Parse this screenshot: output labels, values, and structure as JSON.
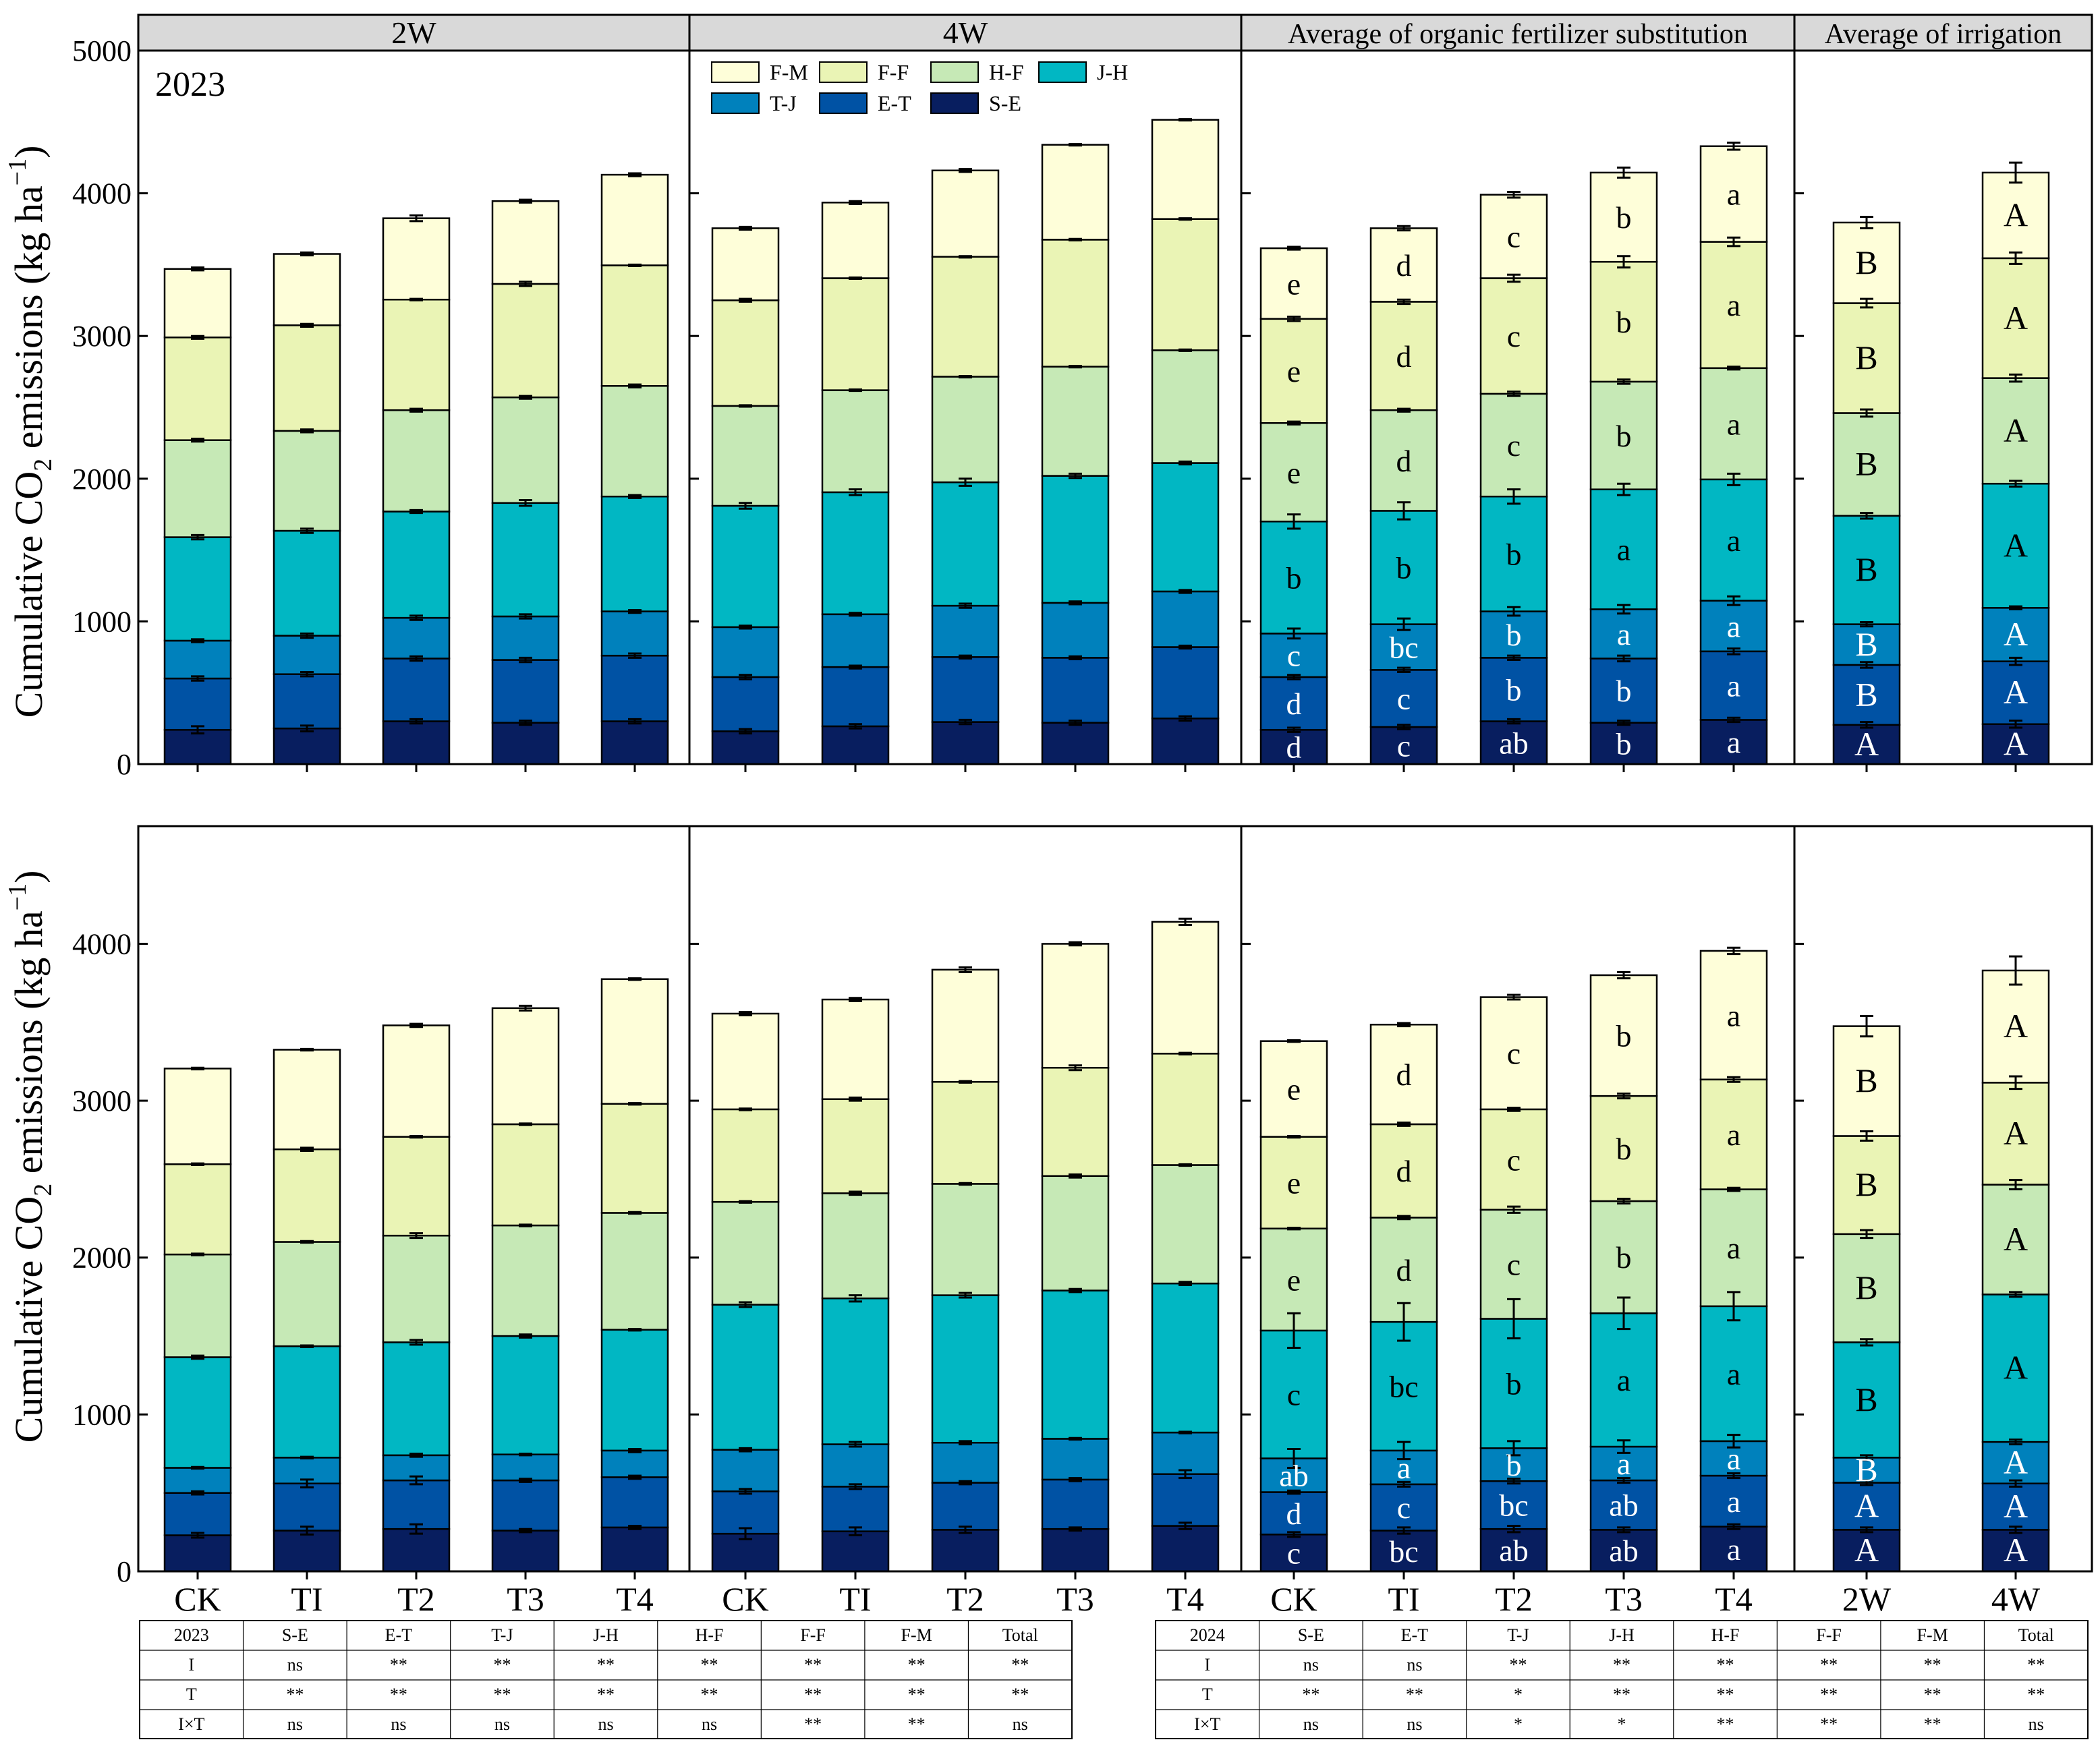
{
  "figure": {
    "ylabel_main": "Cumulative CO",
    "ylabel_sub": "2",
    "ylabel_rest": " emissions (kg ha",
    "ylabel_sup": "−1",
    "ylabel_end": ")",
    "panel_headers": [
      "2W",
      "4W",
      "Average of organic fertilizer substitution",
      "Average of irrigation"
    ],
    "year_label_top": "2023",
    "x_labels": [
      "CK",
      "TI",
      "T2",
      "T3",
      "T4",
      "CK",
      "TI",
      "T2",
      "T3",
      "T4",
      "CK",
      "TI",
      "T2",
      "T3",
      "T4",
      "2W",
      "4W"
    ]
  },
  "legend": [
    {
      "key": "F-M",
      "color": "#fefed9"
    },
    {
      "key": "F-F",
      "color": "#eaf4b5"
    },
    {
      "key": "H-F",
      "color": "#c6e9b6"
    },
    {
      "key": "J-H",
      "color": "#01b7c3"
    },
    {
      "key": "T-J",
      "color": "#0081bc"
    },
    {
      "key": "E-T",
      "color": "#0052a4"
    },
    {
      "key": "S-E",
      "color": "#081e5f"
    }
  ],
  "chart_data": [
    {
      "type": "bar",
      "stacked": true,
      "title": "2023",
      "ylabel": "Cumulative CO2 emissions (kg ha-1)",
      "ylim": [
        0,
        5000
      ],
      "yticks": [
        0,
        1000,
        2000,
        3000,
        4000,
        5000
      ],
      "categories": [
        "2W CK",
        "2W TI",
        "2W T2",
        "2W T3",
        "2W T4",
        "4W CK",
        "4W TI",
        "4W T2",
        "4W T3",
        "4W T4",
        "Avg CK",
        "Avg TI",
        "Avg T2",
        "Avg T3",
        "Avg T4",
        "2W",
        "4W"
      ],
      "cumulative": {
        "S-E": [
          240,
          250,
          300,
          290,
          300,
          230,
          265,
          295,
          290,
          320,
          240,
          260,
          300,
          290,
          310,
          275,
          280
        ],
        "E-T": [
          600,
          630,
          740,
          730,
          760,
          610,
          680,
          750,
          745,
          820,
          610,
          660,
          745,
          740,
          790,
          695,
          720
        ],
        "T-J": [
          865,
          900,
          1025,
          1035,
          1070,
          960,
          1050,
          1110,
          1130,
          1210,
          915,
          980,
          1070,
          1085,
          1145,
          980,
          1095
        ],
        "J-H": [
          1590,
          1635,
          1770,
          1830,
          1875,
          1810,
          1905,
          1975,
          2020,
          2110,
          1700,
          1775,
          1875,
          1925,
          1995,
          1740,
          1965
        ],
        "H-F": [
          2270,
          2335,
          2480,
          2570,
          2650,
          2510,
          2620,
          2715,
          2785,
          2900,
          2390,
          2480,
          2595,
          2680,
          2775,
          2460,
          2705
        ],
        "F-F": [
          2990,
          3075,
          3255,
          3365,
          3495,
          3250,
          3405,
          3555,
          3675,
          3820,
          3120,
          3240,
          3405,
          3520,
          3660,
          3230,
          3545
        ],
        "F-M": [
          3470,
          3575,
          3825,
          3945,
          4130,
          3755,
          3935,
          4160,
          4340,
          4515,
          3615,
          3755,
          3990,
          4145,
          4330,
          3795,
          4145
        ]
      },
      "error": {
        "S-E": [
          25,
          20,
          15,
          15,
          15,
          15,
          15,
          15,
          15,
          15,
          15,
          15,
          15,
          15,
          15,
          20,
          25
        ],
        "E-T": [
          15,
          15,
          15,
          15,
          15,
          15,
          10,
          10,
          10,
          10,
          15,
          15,
          15,
          20,
          20,
          20,
          25
        ],
        "T-J": [
          10,
          15,
          15,
          15,
          10,
          10,
          10,
          15,
          10,
          10,
          35,
          40,
          30,
          30,
          30,
          15,
          10
        ],
        "J-H": [
          15,
          15,
          10,
          20,
          10,
          20,
          20,
          25,
          15,
          10,
          50,
          60,
          50,
          40,
          40,
          20,
          20
        ],
        "H-F": [
          10,
          10,
          10,
          10,
          10,
          5,
          5,
          5,
          5,
          5,
          10,
          10,
          15,
          15,
          10,
          25,
          25
        ],
        "F-F": [
          10,
          10,
          5,
          15,
          5,
          10,
          5,
          5,
          5,
          5,
          15,
          15,
          25,
          40,
          30,
          30,
          40
        ],
        "F-M": [
          10,
          10,
          20,
          10,
          10,
          10,
          10,
          10,
          5,
          5,
          10,
          15,
          20,
          35,
          25,
          40,
          70
        ]
      },
      "significance": {
        "10": [
          "d",
          "d",
          "c",
          "b",
          "e",
          "e",
          "e"
        ],
        "11": [
          "c",
          "c",
          "bc",
          "b",
          "d",
          "d",
          "d"
        ],
        "12": [
          "ab",
          "b",
          "b",
          "b",
          "c",
          "c",
          "c"
        ],
        "13": [
          "b",
          "b",
          "a",
          "a",
          "b",
          "b",
          "b"
        ],
        "14": [
          "a",
          "a",
          "a",
          "a",
          "a",
          "a",
          "a"
        ],
        "15": [
          "A",
          "B",
          "B",
          "B",
          "B",
          "B",
          "B"
        ],
        "16": [
          "A",
          "A",
          "A",
          "A",
          "A",
          "A",
          "A"
        ]
      }
    },
    {
      "type": "bar",
      "stacked": true,
      "title": "2024",
      "ylabel": "Cumulative CO2 emissions (kg ha-1)",
      "ylim": [
        0,
        4750
      ],
      "yticks": [
        0,
        1000,
        2000,
        3000,
        4000
      ],
      "categories": [
        "2W CK",
        "2W TI",
        "2W T2",
        "2W T3",
        "2W T4",
        "4W CK",
        "4W TI",
        "4W T2",
        "4W T3",
        "4W T4",
        "Avg CK",
        "Avg TI",
        "Avg T2",
        "Avg T3",
        "Avg T4",
        "2W",
        "4W"
      ],
      "cumulative": {
        "S-E": [
          230,
          260,
          270,
          260,
          280,
          240,
          255,
          265,
          270,
          290,
          235,
          260,
          270,
          265,
          285,
          265,
          265
        ],
        "E-T": [
          500,
          560,
          580,
          580,
          600,
          510,
          540,
          565,
          585,
          620,
          505,
          555,
          575,
          580,
          610,
          565,
          560
        ],
        "T-J": [
          660,
          725,
          740,
          745,
          770,
          775,
          810,
          820,
          845,
          885,
          720,
          770,
          785,
          795,
          830,
          725,
          825
        ],
        "J-H": [
          1365,
          1435,
          1460,
          1500,
          1540,
          1700,
          1740,
          1760,
          1790,
          1835,
          1535,
          1590,
          1610,
          1645,
          1690,
          1460,
          1765
        ],
        "H-F": [
          2020,
          2100,
          2140,
          2205,
          2285,
          2355,
          2410,
          2470,
          2520,
          2590,
          2185,
          2255,
          2305,
          2360,
          2435,
          2150,
          2465
        ],
        "F-F": [
          2595,
          2690,
          2770,
          2850,
          2980,
          2945,
          3010,
          3120,
          3210,
          3300,
          2770,
          2850,
          2945,
          3030,
          3135,
          2775,
          3115
        ],
        "F-M": [
          3205,
          3325,
          3480,
          3590,
          3775,
          3555,
          3645,
          3835,
          4000,
          4140,
          3380,
          3485,
          3660,
          3800,
          3955,
          3475,
          3830
        ]
      },
      "error": {
        "S-E": [
          15,
          25,
          30,
          10,
          10,
          35,
          25,
          20,
          10,
          20,
          15,
          20,
          20,
          15,
          15,
          15,
          20
        ],
        "E-T": [
          10,
          25,
          25,
          10,
          10,
          15,
          15,
          10,
          10,
          25,
          10,
          15,
          15,
          15,
          15,
          15,
          20
        ],
        "T-J": [
          5,
          5,
          10,
          5,
          10,
          10,
          15,
          10,
          5,
          5,
          60,
          55,
          45,
          40,
          40,
          15,
          15
        ],
        "J-H": [
          10,
          5,
          15,
          10,
          5,
          15,
          20,
          15,
          10,
          10,
          110,
          120,
          125,
          100,
          90,
          20,
          15
        ],
        "H-F": [
          5,
          5,
          15,
          5,
          5,
          5,
          10,
          5,
          10,
          5,
          5,
          10,
          20,
          15,
          10,
          25,
          30
        ],
        "F-F": [
          5,
          10,
          5,
          5,
          5,
          5,
          10,
          5,
          15,
          5,
          5,
          10,
          10,
          15,
          15,
          30,
          40
        ],
        "F-M": [
          5,
          5,
          10,
          15,
          5,
          10,
          10,
          15,
          10,
          20,
          5,
          10,
          15,
          20,
          20,
          65,
          90
        ]
      },
      "significance": {
        "10": [
          "c",
          "d",
          "ab",
          "c",
          "e",
          "e",
          "e"
        ],
        "11": [
          "bc",
          "c",
          "a",
          "bc",
          "d",
          "d",
          "d"
        ],
        "12": [
          "ab",
          "bc",
          "b",
          "b",
          "c",
          "c",
          "c"
        ],
        "13": [
          "ab",
          "ab",
          "a",
          "a",
          "b",
          "b",
          "b"
        ],
        "14": [
          "a",
          "a",
          "a",
          "a",
          "a",
          "a",
          "a"
        ],
        "15": [
          "A",
          "A",
          "B",
          "B",
          "B",
          "B",
          "B"
        ],
        "16": [
          "A",
          "A",
          "A",
          "A",
          "A",
          "A",
          "A"
        ]
      }
    }
  ],
  "tables": [
    {
      "header": [
        "2023",
        "S-E",
        "E-T",
        "T-J",
        "J-H",
        "H-F",
        "F-F",
        "F-M",
        "Total"
      ],
      "rows": [
        [
          "I",
          "ns",
          "**",
          "**",
          "**",
          "**",
          "**",
          "**",
          "**"
        ],
        [
          "T",
          "**",
          "**",
          "**",
          "**",
          "**",
          "**",
          "**",
          "**"
        ],
        [
          "I×T",
          "ns",
          "ns",
          "ns",
          "ns",
          "ns",
          "**",
          "**",
          "ns"
        ]
      ]
    },
    {
      "header": [
        "2024",
        "S-E",
        "E-T",
        "T-J",
        "J-H",
        "H-F",
        "F-F",
        "F-M",
        "Total"
      ],
      "rows": [
        [
          "I",
          "ns",
          "ns",
          "**",
          "**",
          "**",
          "**",
          "**",
          "**"
        ],
        [
          "T",
          "**",
          "**",
          "*",
          "**",
          "**",
          "**",
          "**",
          "**"
        ],
        [
          "I×T",
          "ns",
          "ns",
          "*",
          "*",
          "**",
          "**",
          "**",
          "ns"
        ]
      ]
    }
  ]
}
